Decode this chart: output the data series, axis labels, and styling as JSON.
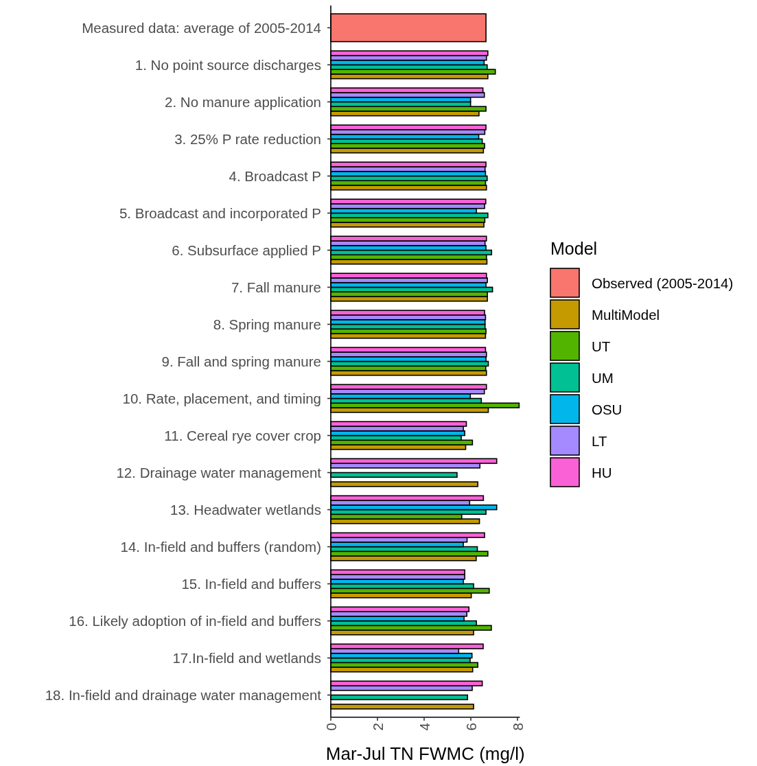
{
  "chart_data": {
    "type": "bar",
    "orientation": "horizontal",
    "xlabel": "Mar-Jul TN FWMC (mg/l)",
    "legend_title": "Model",
    "legend": "right",
    "categories": [
      "Measured data: average of 2005-2014",
      "1. No point source discharges",
      "2. No manure application",
      "3. 25% P rate reduction",
      "4. Broadcast P",
      "5. Broadcast and incorporated P",
      "6. Subsurface applied P",
      "7. Fall manure",
      "8. Spring manure",
      "9. Fall and spring manure",
      "10. Rate, placement, and timing",
      "11. Cereal rye cover crop",
      "12. Drainage water management",
      "13. Headwater wetlands",
      "14. In-field and buffers (random)",
      "15. In-field and buffers",
      "16. Likely adoption of in-field and buffers",
      "17.In-field and wetlands",
      "18. In-field and drainage water management"
    ],
    "series": [
      {
        "name": "Observed (2005-2014)",
        "color": "#f8766d",
        "values": [
          6.65,
          null,
          null,
          null,
          null,
          null,
          null,
          null,
          null,
          null,
          null,
          null,
          null,
          null,
          null,
          null,
          null,
          null,
          null
        ]
      },
      {
        "name": "MultiModel",
        "color": "#c49a00",
        "values": [
          null,
          6.73,
          6.35,
          6.54,
          6.67,
          6.56,
          6.69,
          6.71,
          6.63,
          6.67,
          6.75,
          5.78,
          6.3,
          6.37,
          6.23,
          6.02,
          6.12,
          6.08,
          6.12
        ]
      },
      {
        "name": "UT",
        "color": "#53b400",
        "values": [
          null,
          7.05,
          6.65,
          6.59,
          6.63,
          6.6,
          6.67,
          6.71,
          6.65,
          6.64,
          8.07,
          6.07,
          null,
          5.61,
          6.73,
          6.79,
          6.88,
          6.3,
          null
        ]
      },
      {
        "name": "UM",
        "color": "#00c094",
        "values": [
          null,
          6.7,
          5.99,
          6.49,
          6.7,
          6.73,
          6.89,
          6.93,
          6.61,
          6.75,
          6.45,
          5.59,
          5.41,
          6.65,
          6.28,
          6.12,
          6.24,
          5.97,
          5.86
        ]
      },
      {
        "name": "OSU",
        "color": "#00b6eb",
        "values": [
          null,
          6.57,
          5.99,
          6.34,
          6.63,
          6.24,
          6.65,
          6.65,
          6.61,
          6.65,
          5.98,
          5.74,
          null,
          7.11,
          5.68,
          5.68,
          5.71,
          6.05,
          null
        ]
      },
      {
        "name": "LT",
        "color": "#a58aff",
        "values": [
          null,
          6.67,
          6.58,
          6.6,
          6.61,
          6.59,
          6.61,
          6.71,
          6.63,
          6.67,
          6.58,
          5.68,
          6.39,
          5.95,
          5.84,
          5.74,
          5.83,
          5.48,
          6.06
        ]
      },
      {
        "name": "HU",
        "color": "#fb61d7",
        "values": [
          null,
          6.73,
          6.52,
          6.65,
          6.65,
          6.64,
          6.67,
          6.67,
          6.59,
          6.63,
          6.67,
          5.81,
          7.11,
          6.54,
          6.59,
          5.74,
          5.92,
          6.53,
          6.49
        ]
      }
    ],
    "xlim": [
      0,
      8.1
    ],
    "xticks": [
      0,
      2,
      4,
      6,
      8
    ]
  }
}
